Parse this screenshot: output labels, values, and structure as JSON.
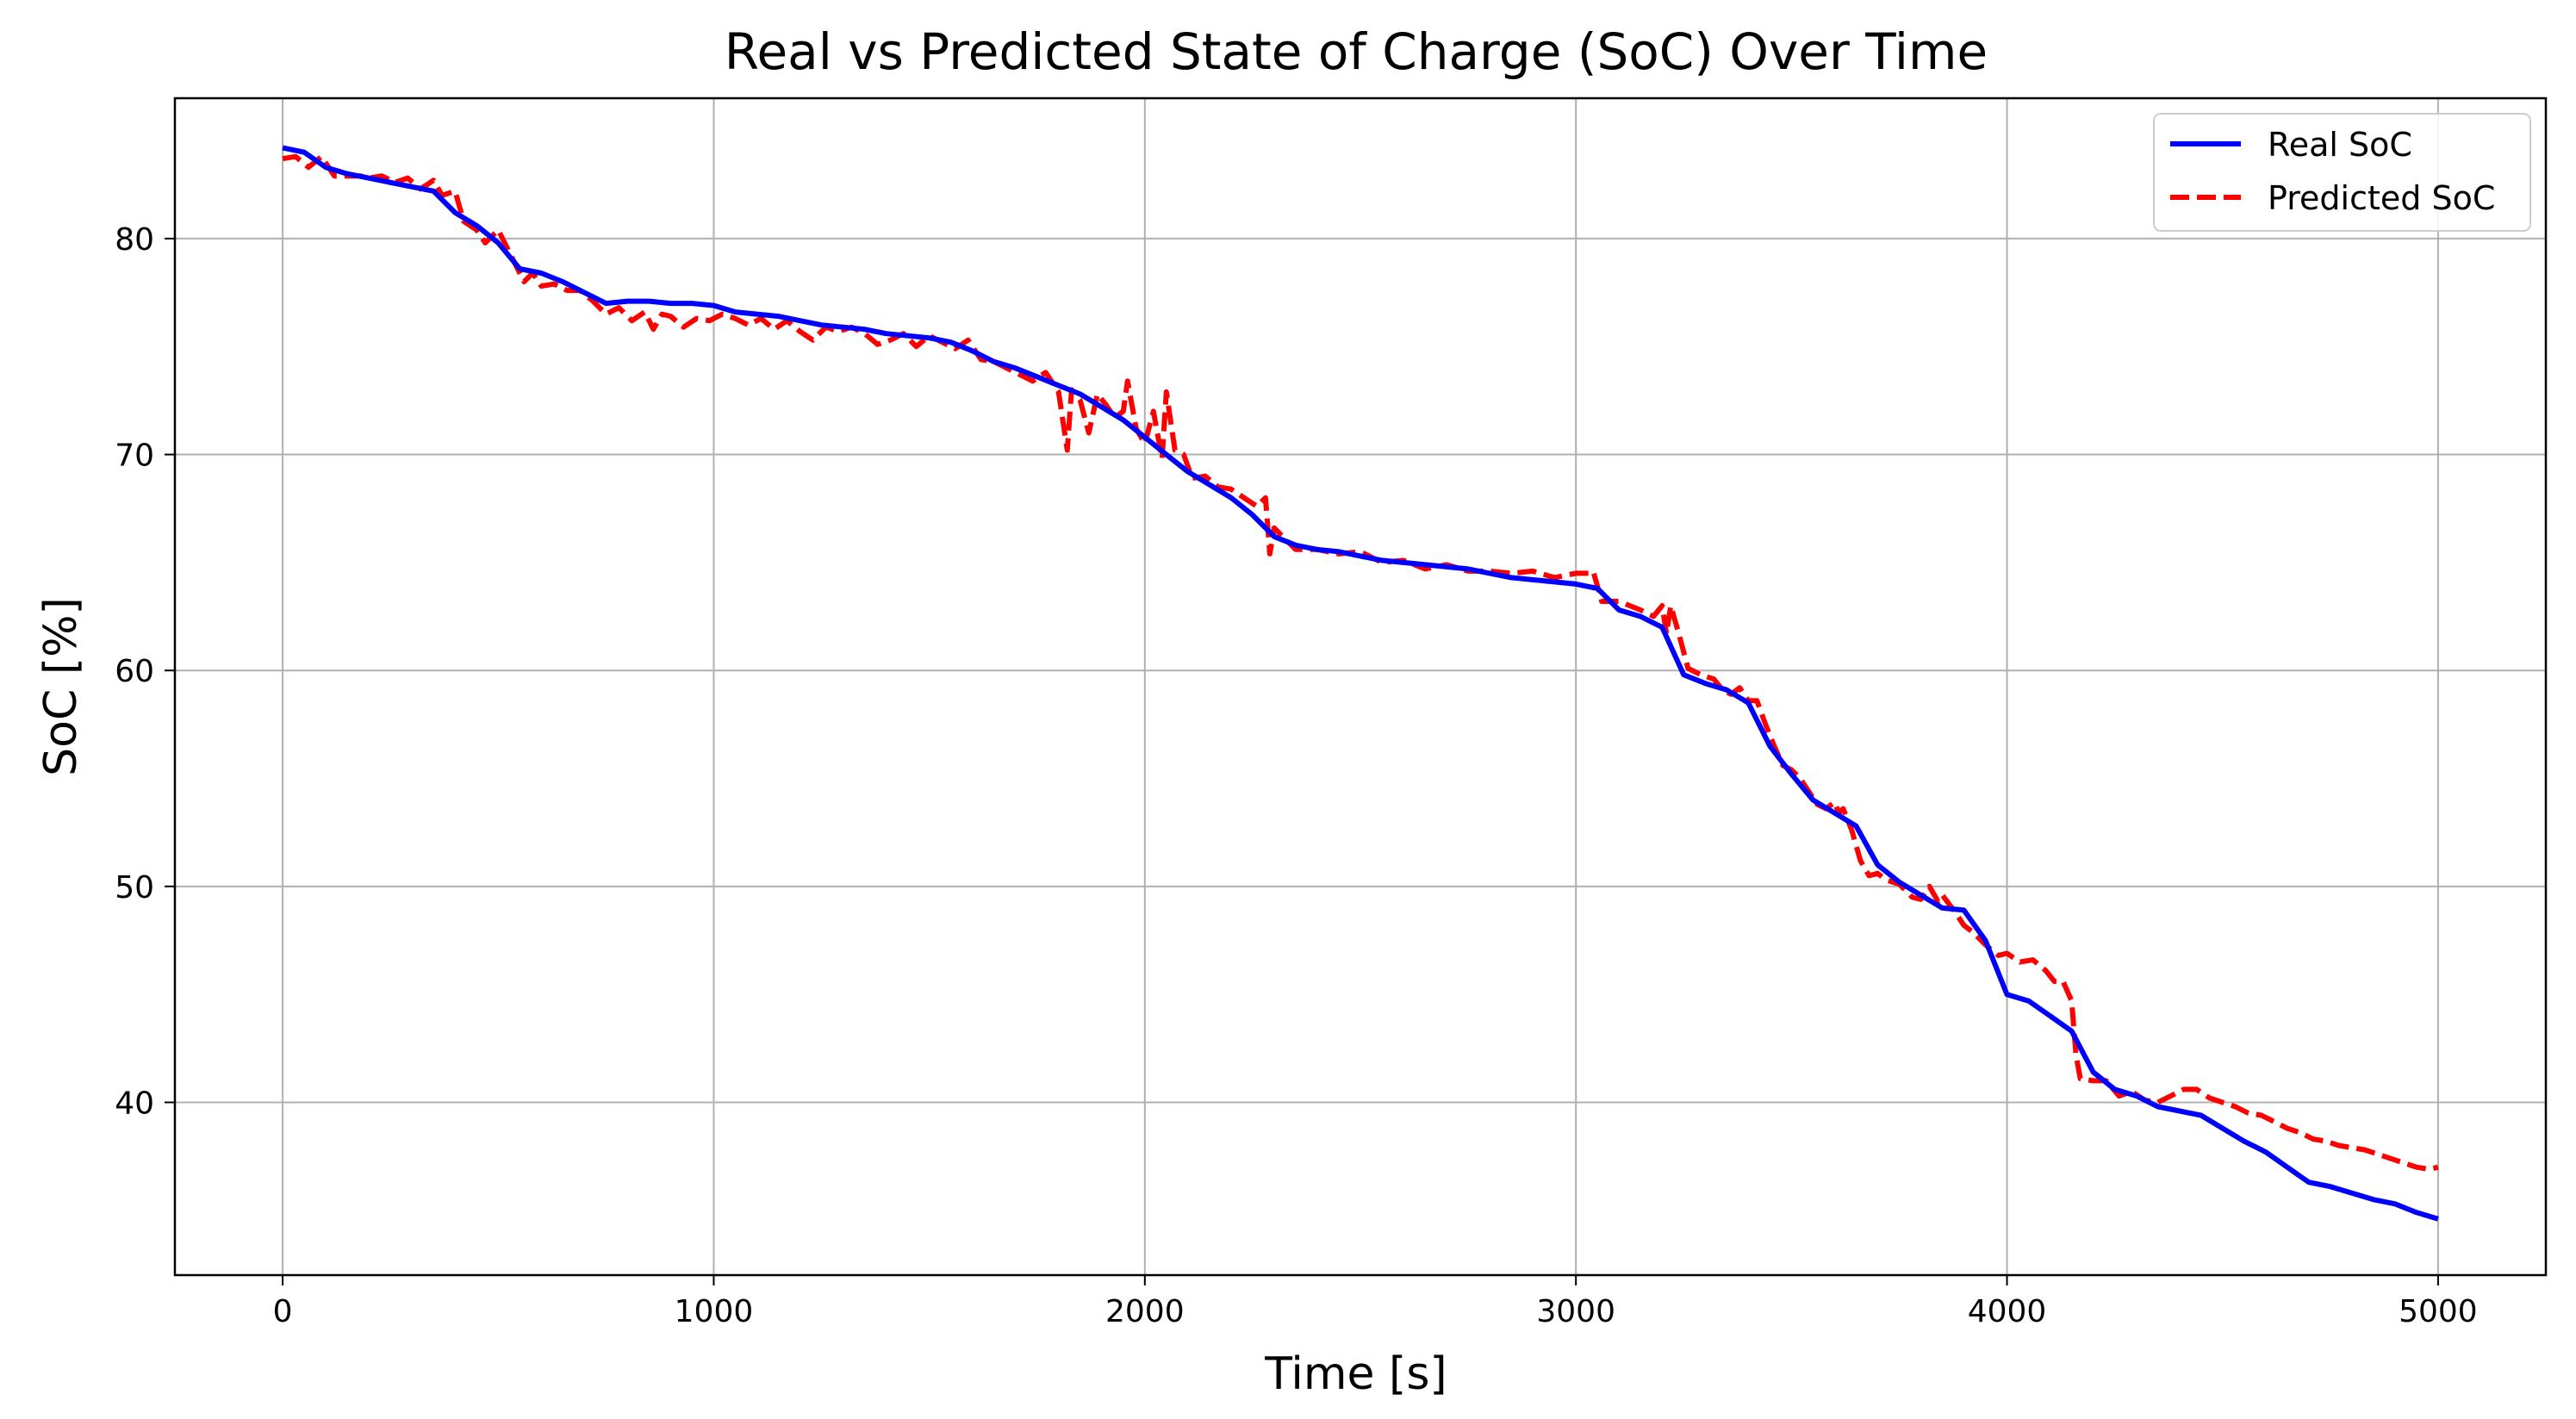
{
  "chart_data": {
    "type": "line",
    "title": "Real vs Predicted State of Charge (SoC) Over Time",
    "xlabel": "Time [s]",
    "ylabel": "SoC [%]",
    "xlim": [
      -250,
      5250
    ],
    "ylim": [
      32,
      86.5
    ],
    "xticks": [
      0,
      1000,
      2000,
      3000,
      4000,
      5000
    ],
    "xtick_labels": [
      "0",
      "1000",
      "2000",
      "3000",
      "4000",
      "5000"
    ],
    "yticks": [
      40,
      50,
      60,
      70,
      80
    ],
    "ytick_labels": [
      "40",
      "50",
      "60",
      "70",
      "80"
    ],
    "grid": true,
    "legend": "top-right",
    "colors": {
      "real": "#0000ff",
      "predicted": "#ff0000",
      "grid": "#b0b0b0"
    },
    "series": [
      {
        "name": "Real SoC",
        "style": "solid",
        "x": [
          0,
          50,
          100,
          150,
          200,
          250,
          300,
          350,
          400,
          450,
          500,
          550,
          600,
          650,
          700,
          750,
          800,
          850,
          900,
          950,
          1000,
          1050,
          1100,
          1150,
          1200,
          1250,
          1300,
          1350,
          1400,
          1450,
          1500,
          1550,
          1600,
          1650,
          1700,
          1750,
          1800,
          1850,
          1900,
          1950,
          2000,
          2050,
          2100,
          2150,
          2200,
          2250,
          2300,
          2350,
          2400,
          2450,
          2500,
          2550,
          2600,
          2650,
          2700,
          2750,
          2800,
          2850,
          2900,
          2950,
          3000,
          3050,
          3100,
          3150,
          3200,
          3250,
          3300,
          3350,
          3400,
          3450,
          3500,
          3550,
          3600,
          3650,
          3700,
          3750,
          3800,
          3850,
          3900,
          3950,
          4000,
          4050,
          4100,
          4150,
          4200,
          4250,
          4300,
          4350,
          4400,
          4450,
          4500,
          4550,
          4600,
          4650,
          4700,
          4750,
          4800,
          4850,
          4900,
          4950,
          5000
        ],
        "y": [
          84.2,
          84.0,
          83.3,
          83.0,
          82.8,
          82.6,
          82.4,
          82.2,
          81.2,
          80.6,
          79.8,
          78.6,
          78.4,
          78.0,
          77.5,
          77.0,
          77.1,
          77.1,
          77.0,
          77.0,
          76.9,
          76.6,
          76.5,
          76.4,
          76.2,
          76.0,
          75.9,
          75.8,
          75.6,
          75.5,
          75.4,
          75.2,
          74.8,
          74.3,
          74.0,
          73.6,
          73.2,
          72.8,
          72.2,
          71.6,
          70.8,
          70.0,
          69.2,
          68.6,
          68.0,
          67.2,
          66.2,
          65.8,
          65.6,
          65.5,
          65.3,
          65.1,
          65.0,
          64.9,
          64.8,
          64.7,
          64.5,
          64.3,
          64.2,
          64.1,
          64.0,
          63.8,
          62.8,
          62.5,
          62.0,
          59.8,
          59.4,
          59.1,
          58.5,
          56.5,
          55.2,
          54.0,
          53.4,
          52.8,
          51.0,
          50.2,
          49.6,
          49.0,
          48.9,
          47.5,
          45.0,
          44.7,
          44.0,
          43.3,
          41.4,
          40.6,
          40.3,
          39.8,
          39.6,
          39.4,
          38.8,
          38.2,
          37.7,
          37.0,
          36.3,
          36.1,
          35.8,
          35.5,
          35.3,
          34.9,
          34.6
        ]
      },
      {
        "name": "Predicted SoC",
        "style": "dashed",
        "x": [
          0,
          30,
          60,
          90,
          120,
          150,
          180,
          200,
          230,
          260,
          290,
          320,
          350,
          370,
          400,
          420,
          450,
          470,
          500,
          530,
          560,
          580,
          600,
          630,
          660,
          690,
          720,
          750,
          780,
          810,
          840,
          860,
          880,
          900,
          930,
          960,
          990,
          1020,
          1050,
          1080,
          1110,
          1140,
          1170,
          1200,
          1230,
          1260,
          1290,
          1320,
          1350,
          1380,
          1410,
          1440,
          1470,
          1500,
          1530,
          1560,
          1590,
          1620,
          1650,
          1680,
          1710,
          1740,
          1770,
          1800,
          1820,
          1830,
          1850,
          1870,
          1890,
          1910,
          1930,
          1950,
          1960,
          1980,
          2000,
          2020,
          2040,
          2050,
          2070,
          2090,
          2110,
          2140,
          2170,
          2200,
          2230,
          2260,
          2280,
          2290,
          2300,
          2320,
          2350,
          2400,
          2450,
          2500,
          2550,
          2600,
          2650,
          2700,
          2750,
          2800,
          2850,
          2900,
          2950,
          3000,
          3030,
          3040,
          3060,
          3100,
          3150,
          3180,
          3200,
          3210,
          3220,
          3240,
          3260,
          3290,
          3320,
          3340,
          3360,
          3380,
          3400,
          3420,
          3440,
          3460,
          3480,
          3500,
          3520,
          3540,
          3560,
          3580,
          3600,
          3610,
          3620,
          3640,
          3660,
          3680,
          3700,
          3720,
          3750,
          3780,
          3800,
          3820,
          3840,
          3850,
          3880,
          3900,
          3920,
          3950,
          3980,
          4000,
          4030,
          4060,
          4090,
          4110,
          4130,
          4150,
          4160,
          4170,
          4200,
          4230,
          4260,
          4290,
          4320,
          4350,
          4380,
          4410,
          4440,
          4470,
          4500,
          4530,
          4560,
          4590,
          4620,
          4650,
          4680,
          4710,
          4740,
          4770,
          4800,
          4830,
          4860,
          4890,
          4920,
          4950,
          4980,
          5000
        ],
        "y": [
          83.7,
          83.8,
          83.3,
          83.8,
          82.9,
          82.9,
          82.9,
          82.8,
          82.9,
          82.6,
          82.8,
          82.3,
          82.7,
          82.0,
          82.2,
          80.8,
          80.4,
          79.8,
          80.4,
          79.2,
          78.0,
          78.4,
          77.8,
          77.9,
          77.6,
          77.6,
          77.1,
          76.5,
          76.8,
          76.2,
          76.6,
          75.8,
          76.5,
          76.4,
          75.9,
          76.3,
          76.2,
          76.5,
          76.3,
          76.0,
          76.3,
          75.8,
          76.2,
          75.7,
          75.3,
          75.9,
          75.7,
          75.9,
          75.6,
          75.1,
          75.3,
          75.6,
          75.0,
          75.5,
          75.2,
          74.9,
          75.3,
          74.4,
          74.3,
          74.0,
          73.7,
          73.4,
          73.8,
          72.9,
          70.2,
          73.0,
          72.5,
          71.0,
          72.8,
          72.3,
          71.7,
          72.0,
          73.4,
          71.2,
          70.5,
          72.0,
          69.8,
          72.9,
          70.2,
          70.0,
          68.9,
          69.0,
          68.5,
          68.4,
          68.0,
          67.6,
          68.0,
          65.4,
          66.6,
          66.2,
          65.6,
          65.6,
          65.4,
          65.5,
          65.0,
          65.1,
          64.7,
          64.9,
          64.6,
          64.6,
          64.5,
          64.6,
          64.3,
          64.5,
          64.5,
          64.6,
          63.2,
          63.2,
          62.8,
          62.5,
          63.0,
          61.7,
          63.0,
          61.6,
          60.1,
          59.8,
          59.6,
          59.1,
          58.9,
          59.2,
          58.6,
          58.6,
          57.5,
          56.5,
          55.6,
          55.4,
          55.0,
          54.4,
          53.8,
          53.6,
          53.9,
          53.4,
          53.6,
          52.6,
          51.2,
          50.5,
          50.6,
          50.3,
          50.1,
          49.5,
          49.4,
          50.0,
          49.3,
          49.6,
          48.8,
          48.2,
          47.9,
          47.3,
          46.8,
          46.9,
          46.5,
          46.6,
          46.1,
          45.6,
          45.6,
          44.7,
          42.2,
          41.1,
          41.0,
          41.0,
          40.3,
          40.5,
          40.1,
          40.0,
          40.3,
          40.6,
          40.6,
          40.2,
          40.0,
          39.8,
          39.5,
          39.4,
          39.1,
          38.8,
          38.6,
          38.3,
          38.2,
          38.0,
          37.9,
          37.8,
          37.6,
          37.4,
          37.2,
          37.0,
          36.9,
          37.0
        ]
      }
    ]
  }
}
